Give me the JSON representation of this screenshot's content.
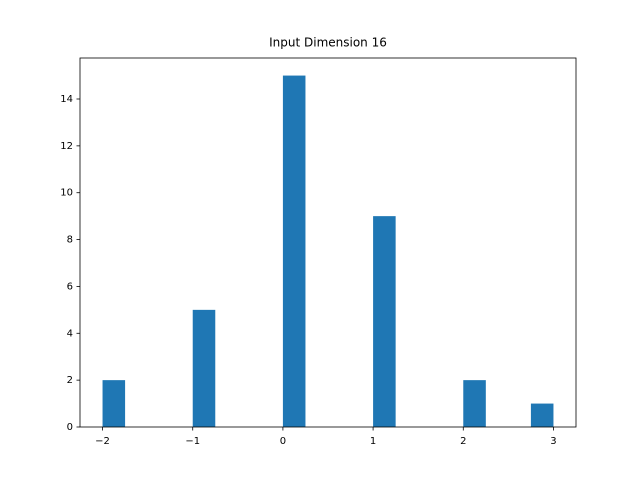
{
  "chart_data": {
    "type": "histogram",
    "title": "Input Dimension 16",
    "bins": [
      -2,
      -1.75,
      -1.5,
      -1.25,
      -1,
      -0.75,
      -0.5,
      -0.25,
      0,
      0.25,
      0.5,
      0.75,
      1,
      1.25,
      1.5,
      1.75,
      2,
      2.25,
      2.5,
      2.75,
      3
    ],
    "values": [
      2,
      0,
      0,
      0,
      5,
      0,
      0,
      0,
      15,
      0,
      0,
      0,
      9,
      0,
      0,
      0,
      2,
      0,
      0,
      1
    ],
    "color": "#1f77b4",
    "xlim": [
      -2.25,
      3.25
    ],
    "xticks": [
      {
        "value": -2,
        "label": "−2"
      },
      {
        "value": -1,
        "label": "−1"
      },
      0,
      1,
      2,
      3
    ],
    "ylim": [
      0,
      15.75
    ],
    "yticks": [
      0,
      2,
      4,
      6,
      8,
      10,
      12,
      14
    ],
    "grid": false
  }
}
